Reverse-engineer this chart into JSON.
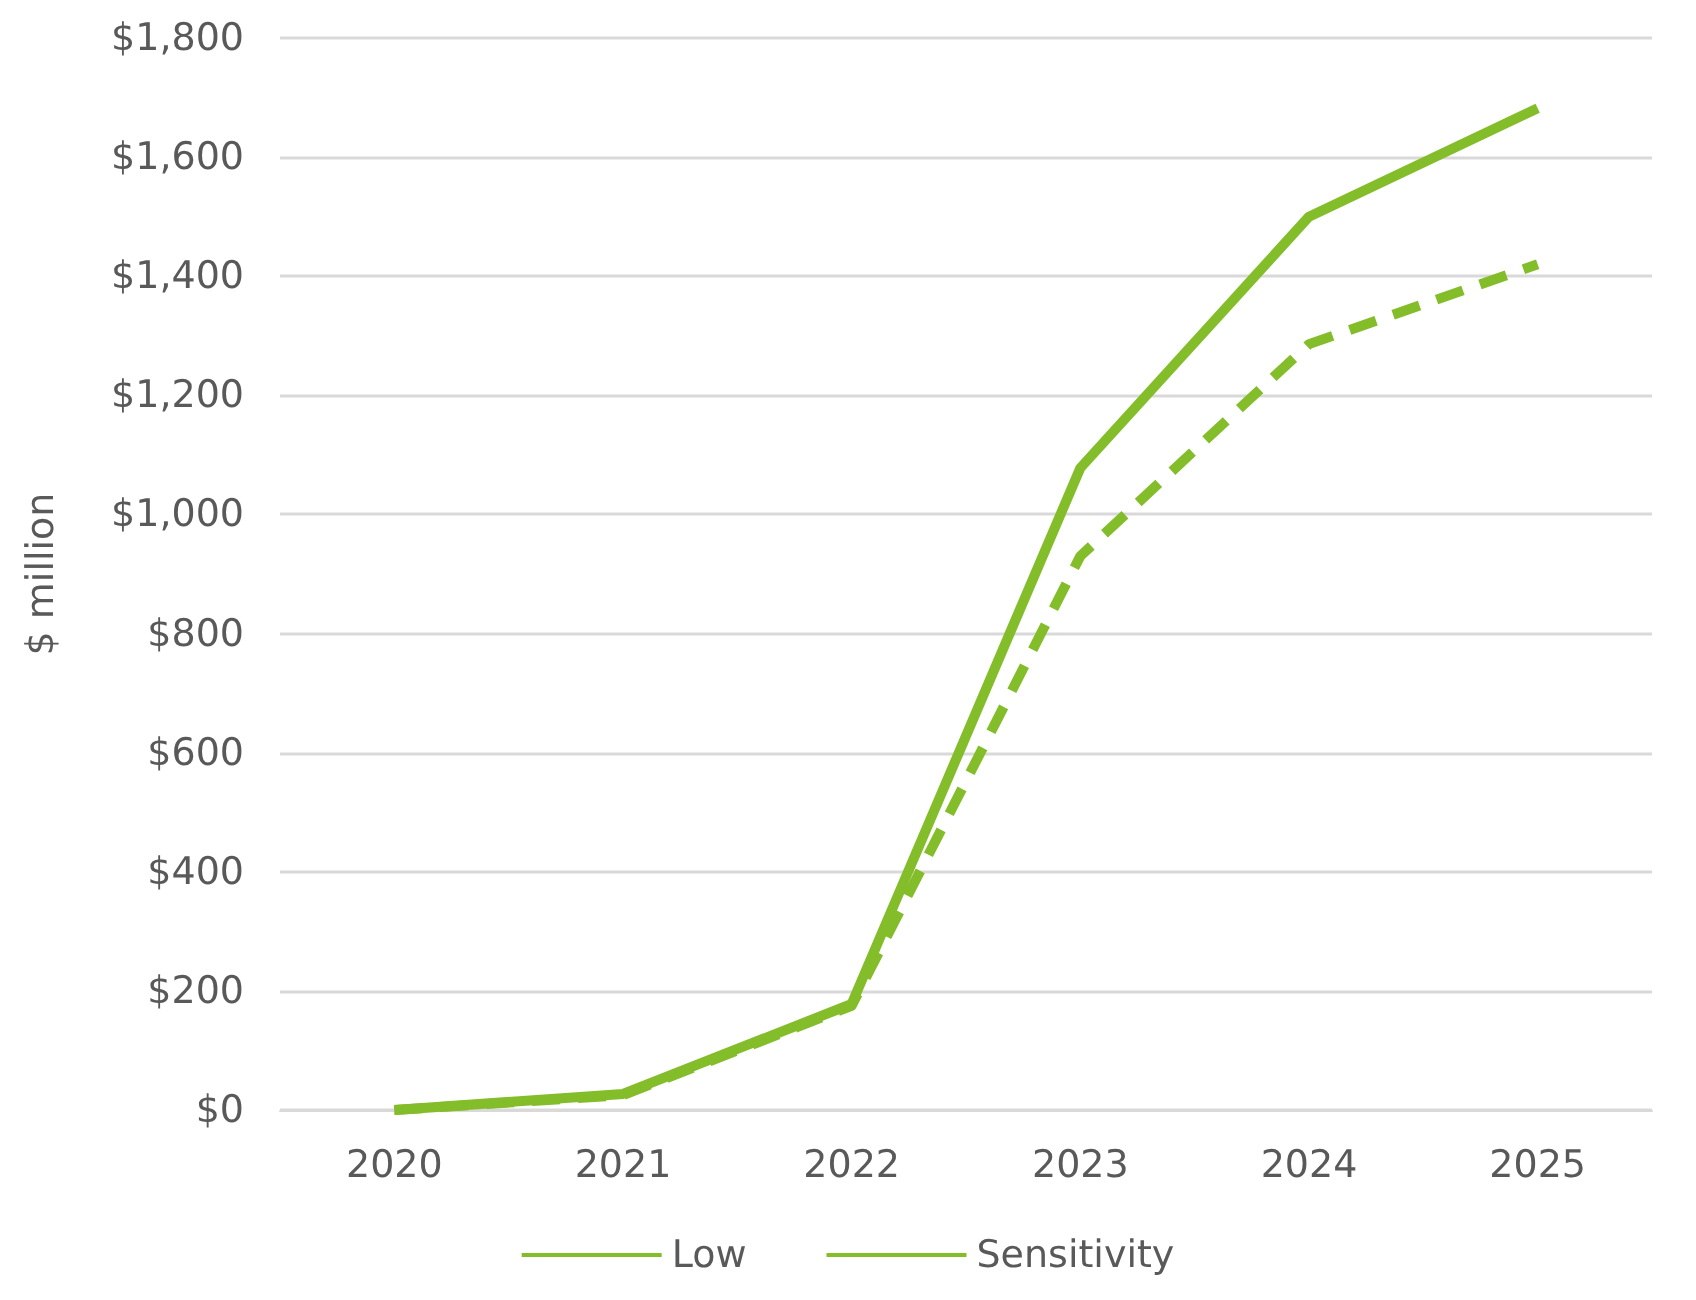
{
  "chart_data": {
    "type": "line",
    "ylabel": "$ million",
    "categories": [
      "2020",
      "2021",
      "2022",
      "2023",
      "2024",
      "2025"
    ],
    "series": [
      {
        "name": "Low",
        "color": "#84bd2a",
        "line_style": "solid",
        "values": [
          0,
          27,
          178,
          1078,
          1500,
          1682
        ]
      },
      {
        "name": "Sensitivity",
        "color": "#84bd2a",
        "line_style": "dashed",
        "values": [
          0,
          25,
          175,
          930,
          1286,
          1420
        ]
      }
    ],
    "ylim": [
      0,
      1800
    ],
    "yticks": [
      {
        "value": 0,
        "label": "$0"
      },
      {
        "value": 200,
        "label": "$200"
      },
      {
        "value": 400,
        "label": "$400"
      },
      {
        "value": 600,
        "label": "$600"
      },
      {
        "value": 800,
        "label": "$800"
      },
      {
        "value": 1000,
        "label": "$1,000"
      },
      {
        "value": 1200,
        "label": "$1,200"
      },
      {
        "value": 1400,
        "label": "$1,400"
      },
      {
        "value": 1600,
        "label": "$1,600"
      },
      {
        "value": 1800,
        "label": "$1,800"
      }
    ],
    "grid": "y",
    "legend": "bottom",
    "marker": "none"
  }
}
